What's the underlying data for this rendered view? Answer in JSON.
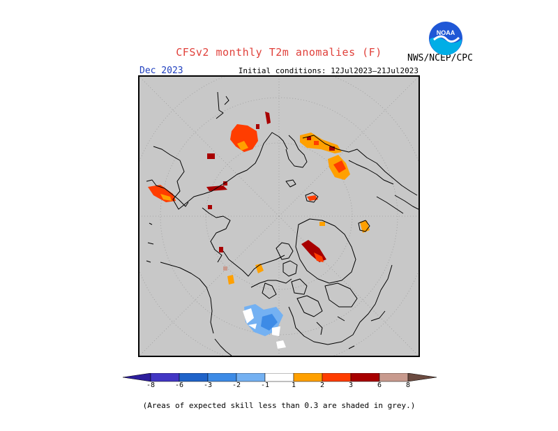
{
  "title": "CFSv2 monthly T2m anomalies (F)",
  "agency": "NWS/NCEP/CPC",
  "logo": {
    "icon": "noaa-logo",
    "text": "NOAA",
    "colors": {
      "outer": "#1f57d6",
      "inner": "#00aee6",
      "bird": "#ffffff"
    }
  },
  "period": "Dec 2023",
  "initial_conditions": "Initial conditions: 12Jul2023–21Jul2023",
  "map": {
    "projection": "north-polar-stereographic",
    "background_color": "#c8c8c8",
    "skill_mask_color": "#c8c8c8",
    "coastline_color": "#000000",
    "graticule": "dotted"
  },
  "colorbar": {
    "labels": [
      "-8",
      "-6",
      "-3",
      "-2",
      "-1",
      "1",
      "2",
      "3",
      "6",
      "8"
    ],
    "colors": [
      "#2c1d9c",
      "#4236c4",
      "#1f63c9",
      "#3d8be6",
      "#74b1f2",
      "#ffffff",
      "#ffa000",
      "#ff3d00",
      "#a80000",
      "#c89a8e",
      "#6b4a40"
    ]
  },
  "footnote": "(Areas of expected skill less than 0.3 are shaded in grey.)"
}
